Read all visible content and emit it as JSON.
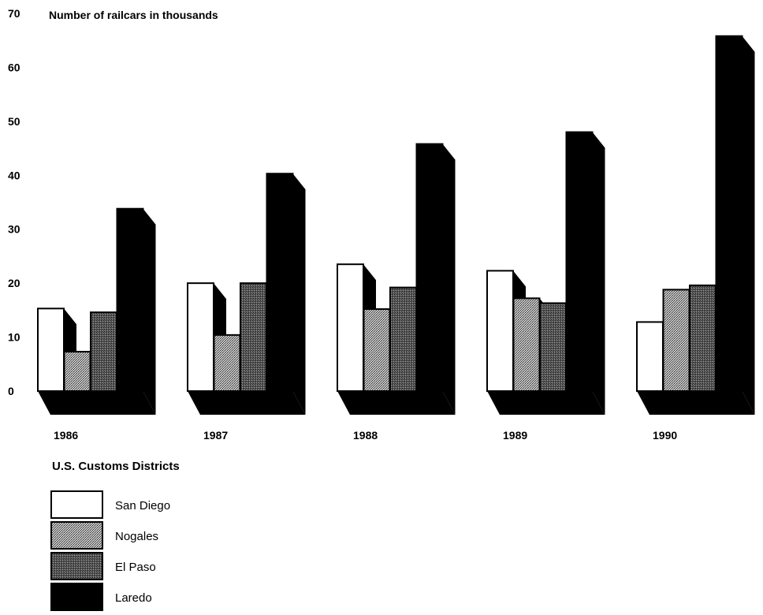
{
  "chart_data": {
    "type": "bar",
    "title": "Number of railcars in thousands",
    "xlabel": "U.S. Customs Districts",
    "ylabel": "",
    "ylim": [
      0,
      70
    ],
    "y_ticks": [
      "0",
      "10",
      "20",
      "30",
      "40",
      "50",
      "60",
      "70"
    ],
    "categories": [
      "1986",
      "1987",
      "1988",
      "1989",
      "1990"
    ],
    "series": [
      {
        "name": "San Diego",
        "values": [
          15.3,
          20.0,
          23.5,
          22.3,
          12.8
        ]
      },
      {
        "name": "Nogales",
        "values": [
          7.3,
          10.4,
          15.2,
          17.2,
          18.8
        ]
      },
      {
        "name": "El Paso",
        "values": [
          14.6,
          20.0,
          19.2,
          16.3,
          19.6
        ]
      },
      {
        "name": "Laredo",
        "values": [
          33.8,
          40.3,
          45.8,
          48.0,
          65.8
        ]
      }
    ],
    "grid": false,
    "legend_position": "bottom-left",
    "style": "3d-extruded"
  },
  "colors": {
    "san_diego": "#ffffff",
    "nogales": "#a8a8a8",
    "el_paso": "#6a6a6a",
    "laredo": "#000000",
    "shadow": "#000000"
  }
}
